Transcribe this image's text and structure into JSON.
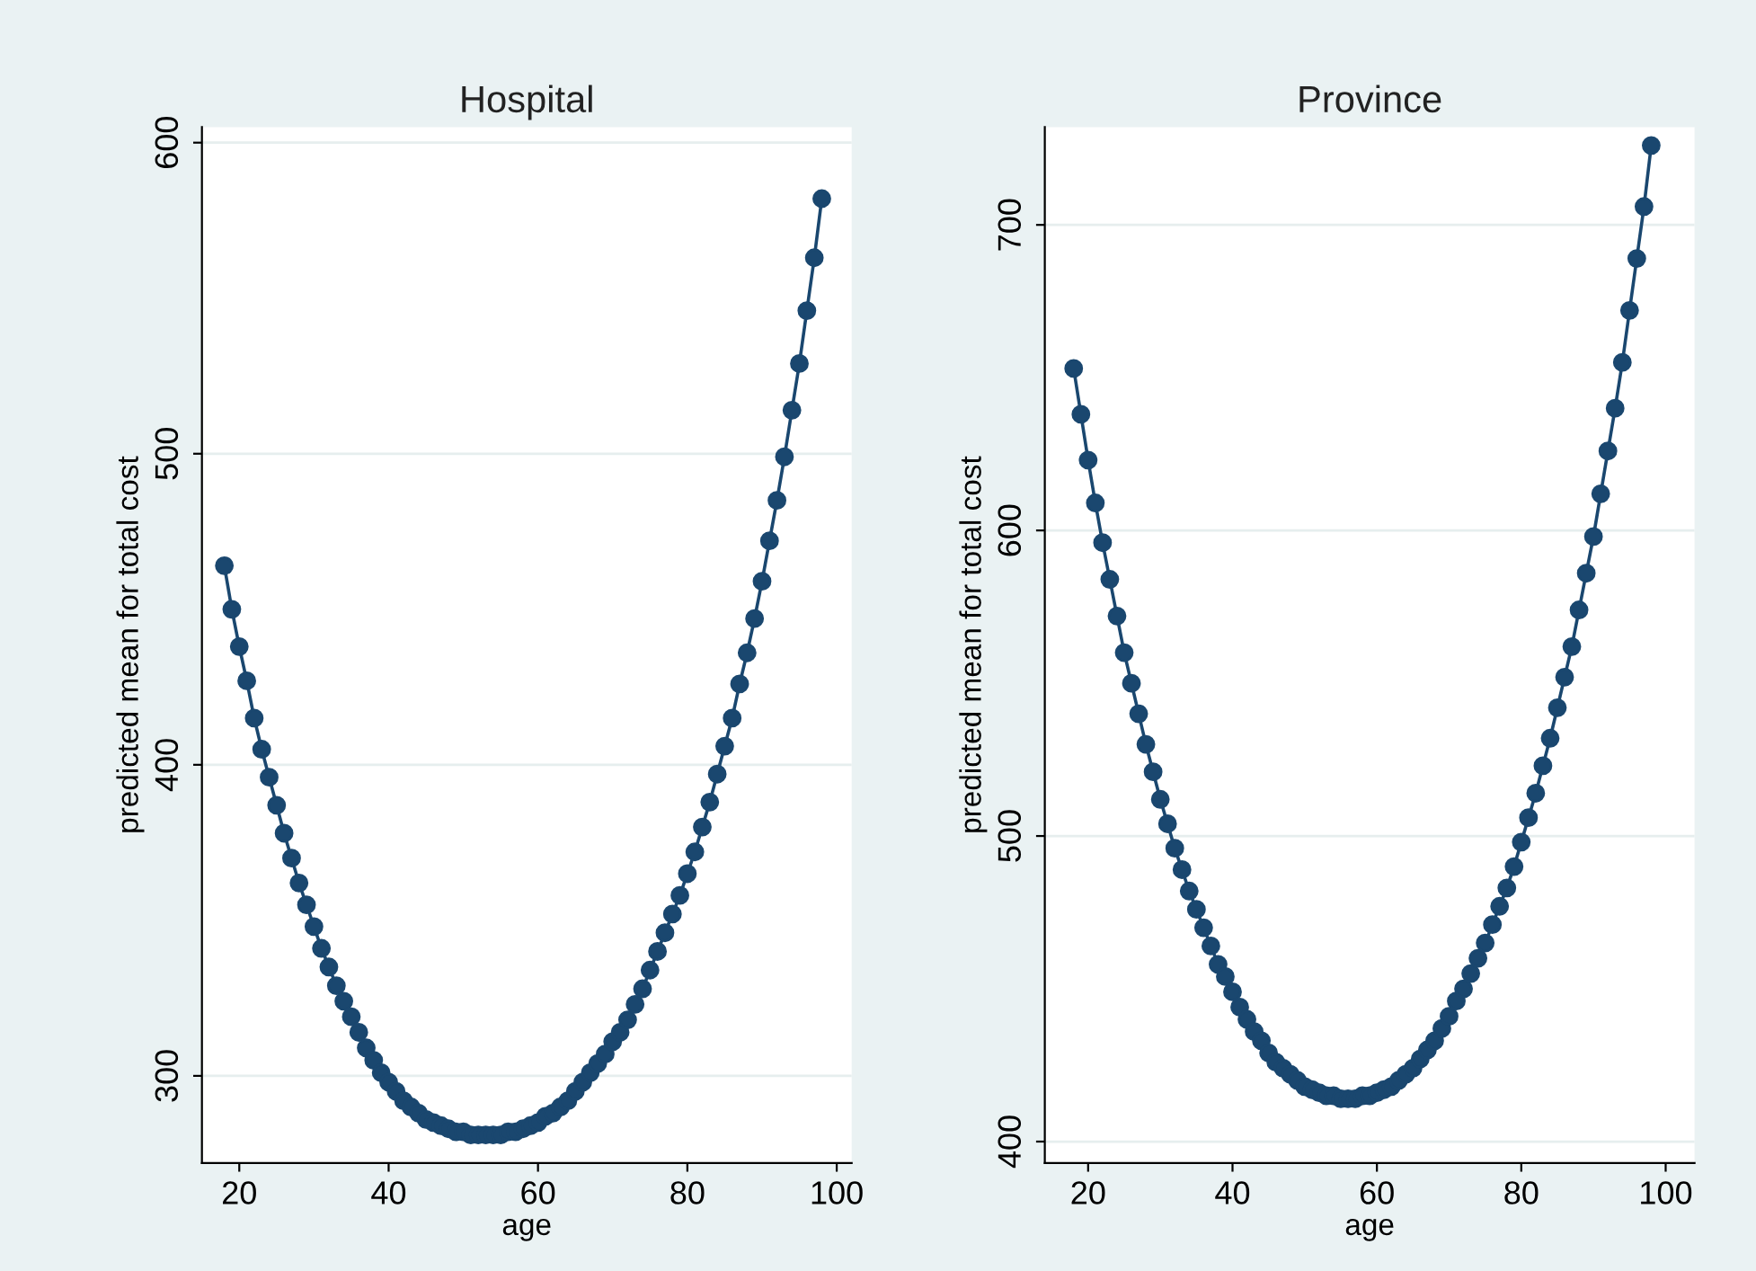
{
  "chart_data": [
    {
      "type": "line",
      "title": "Hospital",
      "xlabel": "age",
      "ylabel": "predicted mean for total cost",
      "x": [
        18,
        19,
        20,
        21,
        22,
        23,
        24,
        25,
        26,
        27,
        28,
        29,
        30,
        31,
        32,
        33,
        34,
        35,
        36,
        37,
        38,
        39,
        40,
        41,
        42,
        43,
        44,
        45,
        46,
        47,
        48,
        49,
        50,
        51,
        52,
        53,
        54,
        55,
        56,
        57,
        58,
        59,
        60,
        61,
        62,
        63,
        64,
        65,
        66,
        67,
        68,
        69,
        70,
        71,
        72,
        73,
        74,
        75,
        76,
        77,
        78,
        79,
        80,
        81,
        82,
        83,
        84,
        85,
        86,
        87,
        88,
        89,
        90,
        91,
        92,
        93,
        94,
        95,
        96,
        97,
        98
      ],
      "series": [
        {
          "color": "#1a476f",
          "values": [
            464,
            450,
            438,
            427,
            415,
            405,
            396,
            387,
            378,
            370,
            362,
            355,
            348,
            341,
            335,
            329,
            324,
            319,
            314,
            309,
            305,
            301,
            298,
            295,
            292,
            290,
            288,
            286,
            285,
            284,
            283,
            282,
            282,
            281,
            281,
            281,
            281,
            281,
            282,
            282,
            283,
            284,
            285,
            287,
            288,
            290,
            292,
            295,
            298,
            301,
            304,
            307,
            311,
            314,
            318,
            323,
            328,
            334,
            340,
            346,
            352,
            358,
            365,
            372,
            380,
            388,
            397,
            406,
            415,
            426,
            436,
            447,
            459,
            472,
            485,
            499,
            514,
            529,
            546,
            563,
            582
          ]
        }
      ],
      "xlim": [
        15,
        102
      ],
      "xticks": [
        20,
        40,
        60,
        80,
        100
      ],
      "ylim": [
        272,
        605
      ],
      "yticks": [
        300,
        400,
        500,
        600
      ],
      "grid": "y",
      "marker": "circle",
      "line_style": "solid"
    },
    {
      "type": "line",
      "title": "Province",
      "xlabel": "age",
      "ylabel": "predicted mean for total cost",
      "x": [
        18,
        19,
        20,
        21,
        22,
        23,
        24,
        25,
        26,
        27,
        28,
        29,
        30,
        31,
        32,
        33,
        34,
        35,
        36,
        37,
        38,
        39,
        40,
        41,
        42,
        43,
        44,
        45,
        46,
        47,
        48,
        49,
        50,
        51,
        52,
        53,
        54,
        55,
        56,
        57,
        58,
        59,
        60,
        61,
        62,
        63,
        64,
        65,
        66,
        67,
        68,
        69,
        70,
        71,
        72,
        73,
        74,
        75,
        76,
        77,
        78,
        79,
        80,
        81,
        82,
        83,
        84,
        85,
        86,
        87,
        88,
        89,
        90,
        91,
        92,
        93,
        94,
        95,
        96,
        97,
        98
      ],
      "series": [
        {
          "color": "#1a476f",
          "values": [
            653,
            638,
            623,
            609,
            596,
            584,
            572,
            560,
            550,
            540,
            530,
            521,
            512,
            504,
            496,
            489,
            482,
            476,
            470,
            464,
            458,
            454,
            449,
            444,
            440,
            436,
            433,
            429,
            426,
            424,
            422,
            420,
            418,
            417,
            416,
            415,
            415,
            414,
            414,
            414,
            415,
            415,
            416,
            417,
            418,
            420,
            422,
            424,
            427,
            430,
            433,
            437,
            441,
            446,
            450,
            455,
            460,
            465,
            471,
            477,
            483,
            490,
            498,
            506,
            514,
            523,
            532,
            542,
            552,
            562,
            574,
            586,
            598,
            612,
            626,
            640,
            655,
            672,
            689,
            706,
            726
          ]
        }
      ],
      "xlim": [
        14,
        104
      ],
      "xticks": [
        20,
        40,
        60,
        80,
        100
      ],
      "ylim": [
        393,
        732
      ],
      "yticks": [
        400,
        500,
        600,
        700
      ],
      "grid": "y",
      "marker": "circle",
      "line_style": "solid"
    }
  ]
}
